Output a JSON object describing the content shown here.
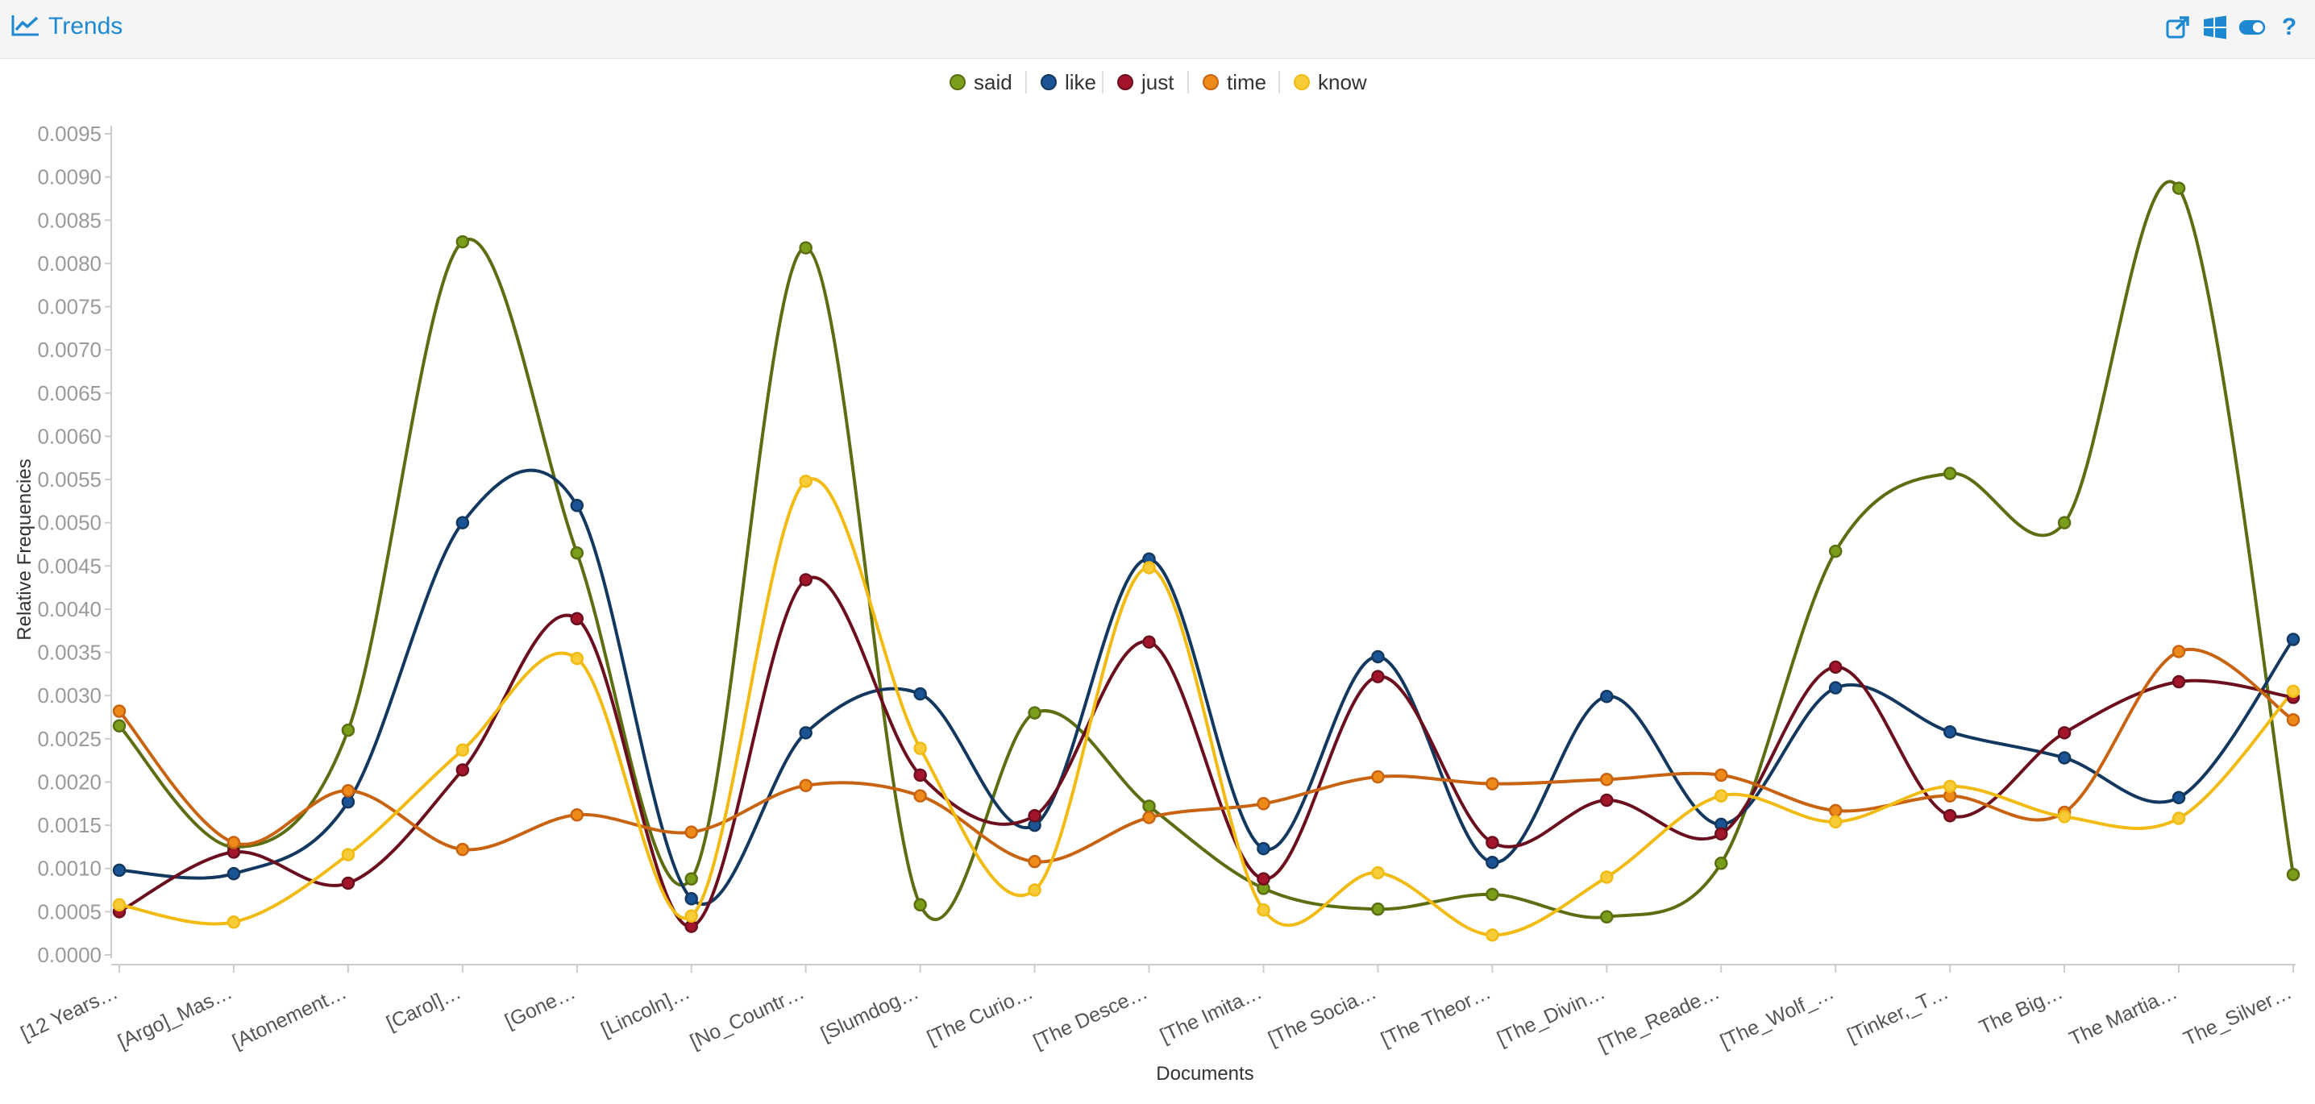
{
  "header": {
    "title": "Trends",
    "icons": [
      "line-chart-icon",
      "external-link-icon",
      "windows-icon",
      "toggle-icon",
      "help-icon"
    ],
    "help_label": "?"
  },
  "chart_data": {
    "type": "line",
    "categories": [
      "[12 Years…",
      "[Argo]_Mas…",
      "[Atonement…",
      "[Carol]…",
      "[Gone…",
      "[Lincoln]…",
      "[No_Countr…",
      "[Slumdog…",
      "[The Curio…",
      "[The Desce…",
      "[The Imita…",
      "[The Socia…",
      "[The Theor…",
      "[The_Divin…",
      "[The_Reade…",
      "[The_Wolf_…",
      "[Tinker,_T…",
      "The Big…",
      "The Martia…",
      "The_Silver…"
    ],
    "series": [
      {
        "name": "said",
        "color": "#7a9e1a",
        "line_color": "#5b6e12",
        "values": [
          0.00265,
          0.00125,
          0.0026,
          0.00825,
          0.00465,
          0.00088,
          0.00818,
          0.00058,
          0.0028,
          0.00172,
          0.00077,
          0.00053,
          0.0007,
          0.00044,
          0.00106,
          0.00467,
          0.00557,
          0.005,
          0.00887,
          0.00093
        ]
      },
      {
        "name": "like",
        "color": "#1a5494",
        "line_color": "#13385f",
        "values": [
          0.00098,
          0.00094,
          0.00177,
          0.005,
          0.0052,
          0.00065,
          0.00257,
          0.00302,
          0.0015,
          0.00458,
          0.00123,
          0.00345,
          0.00107,
          0.00299,
          0.00151,
          0.00309,
          0.00258,
          0.00228,
          0.00182,
          0.00365
        ]
      },
      {
        "name": "just",
        "color": "#a3152b",
        "line_color": "#6b0f1e",
        "values": [
          0.0005,
          0.00119,
          0.00083,
          0.00214,
          0.00389,
          0.00033,
          0.00434,
          0.00208,
          0.00161,
          0.00362,
          0.00088,
          0.00322,
          0.0013,
          0.00179,
          0.0014,
          0.00333,
          0.00161,
          0.00257,
          0.00316,
          0.00298
        ]
      },
      {
        "name": "time",
        "color": "#ee8a1a",
        "line_color": "#c86411",
        "values": [
          0.00282,
          0.0013,
          0.0019,
          0.00122,
          0.00162,
          0.00142,
          0.00196,
          0.00184,
          0.00108,
          0.00159,
          0.00175,
          0.00206,
          0.00198,
          0.00203,
          0.00208,
          0.00167,
          0.00184,
          0.00165,
          0.00351,
          0.00272
        ]
      },
      {
        "name": "know",
        "color": "#f7cc38",
        "line_color": "#f2bb13",
        "values": [
          0.00058,
          0.00038,
          0.00116,
          0.00237,
          0.00343,
          0.00045,
          0.00548,
          0.00239,
          0.00075,
          0.00448,
          0.00052,
          0.00095,
          0.00023,
          0.0009,
          0.00184,
          0.00154,
          0.00195,
          0.0016,
          0.00158,
          0.00305
        ]
      }
    ],
    "yticks": [
      "0.0000",
      "0.0005",
      "0.0010",
      "0.0015",
      "0.0020",
      "0.0025",
      "0.0030",
      "0.0035",
      "0.0040",
      "0.0045",
      "0.0050",
      "0.0055",
      "0.0060",
      "0.0065",
      "0.0070",
      "0.0075",
      "0.0080",
      "0.0085",
      "0.0090",
      "0.0095"
    ],
    "ylim": [
      0,
      0.0095
    ],
    "xlabel": "Documents",
    "ylabel": "Relative Frequencies",
    "legend_position": "top",
    "grid": false
  }
}
